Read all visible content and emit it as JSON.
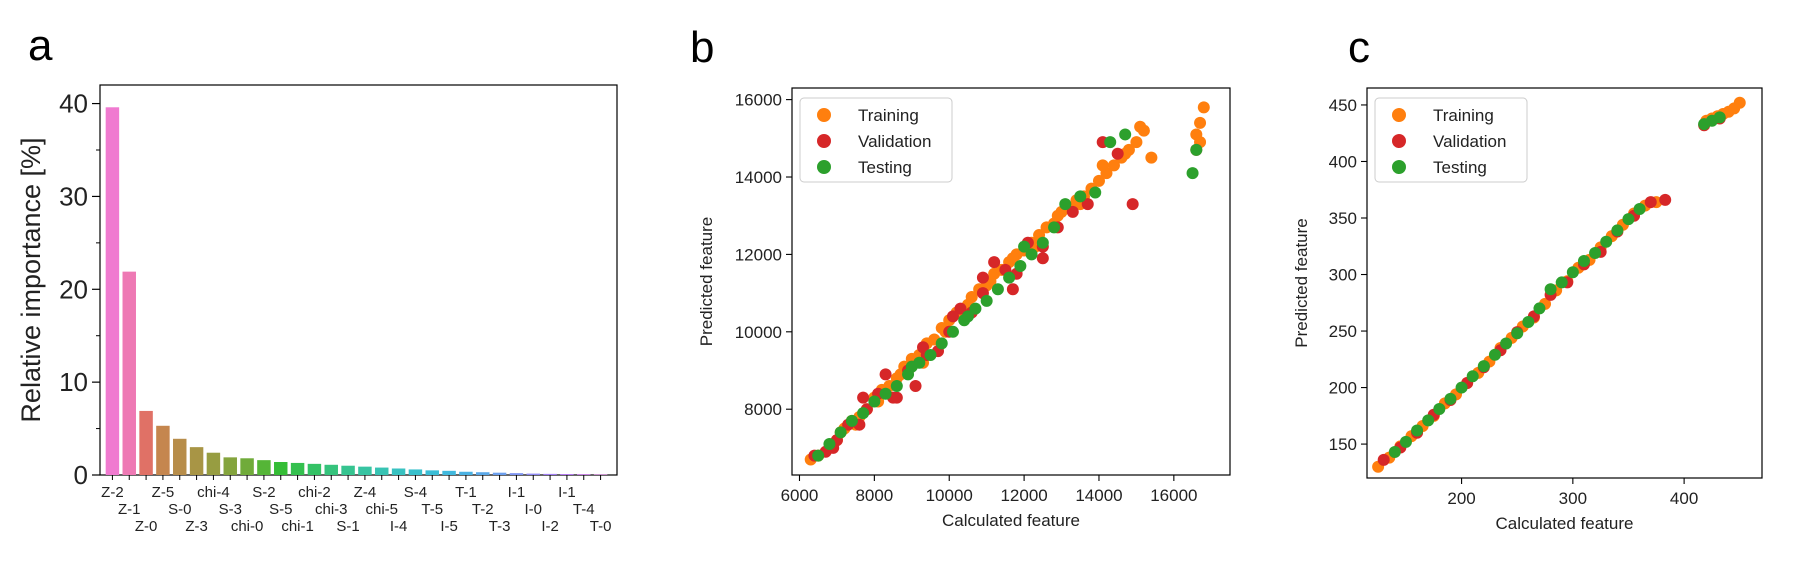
{
  "panels": {
    "a": {
      "letter": "a"
    },
    "b": {
      "letter": "b"
    },
    "c": {
      "letter": "c"
    }
  },
  "chart_data": [
    {
      "panel": "a",
      "type": "bar",
      "ylabel": "Relative importance [%]",
      "xlabel": "",
      "ylim": [
        0,
        42
      ],
      "yticks": [
        0,
        10,
        20,
        30,
        40
      ],
      "grid": false,
      "categories": [
        "Z-2",
        "Z-1",
        "Z-0",
        "Z-5",
        "S-0",
        "Z-3",
        "chi-4",
        "S-3",
        "chi-0",
        "S-2",
        "S-5",
        "chi-1",
        "chi-2",
        "chi-3",
        "S-1",
        "Z-4",
        "chi-5",
        "I-4",
        "S-4",
        "T-5",
        "I-5",
        "T-1",
        "T-2",
        "T-3",
        "I-1",
        "I-0",
        "I-2",
        "I-1",
        "T-4",
        "T-0"
      ],
      "values": [
        39.6,
        21.9,
        6.9,
        5.3,
        3.9,
        3.0,
        2.4,
        1.9,
        1.8,
        1.6,
        1.4,
        1.3,
        1.2,
        1.1,
        1.0,
        0.9,
        0.8,
        0.7,
        0.6,
        0.5,
        0.45,
        0.35,
        0.3,
        0.25,
        0.2,
        0.15,
        0.12,
        0.1,
        0.08,
        0.05
      ],
      "colors": [
        "#f07ad0",
        "#ee79b4",
        "#e07166",
        "#c5864e",
        "#b78d4a",
        "#a89545",
        "#979d41",
        "#84a43d",
        "#70ab3a",
        "#55b537",
        "#35bd36",
        "#34c04e",
        "#34c265",
        "#35c37c",
        "#36c490",
        "#37c4a2",
        "#37c3b3",
        "#38c2c1",
        "#38c0cc",
        "#3abdd6",
        "#40b8dd",
        "#4ab1e2",
        "#5aa8e8",
        "#6b9eed",
        "#7d93f0",
        "#8e88f2",
        "#a07df2",
        "#b173f0",
        "#c36aea",
        "#d666e1"
      ]
    },
    {
      "panel": "b",
      "type": "scatter",
      "xlabel": "Calculated feature",
      "ylabel": "Predicted feature",
      "xlim": [
        5800,
        17500
      ],
      "ylim": [
        6300,
        16300
      ],
      "xticks": [
        6000,
        8000,
        10000,
        12000,
        14000,
        16000
      ],
      "yticks": [
        8000,
        10000,
        12000,
        14000,
        16000
      ],
      "grid": false,
      "legend_position": "top-left",
      "series": [
        {
          "name": "Training",
          "color": "#ff7f0e",
          "x": [
            6300,
            6500,
            6800,
            7000,
            7200,
            7400,
            7600,
            7800,
            8000,
            8200,
            8400,
            8600,
            8800,
            9000,
            9200,
            9400,
            9600,
            9800,
            10000,
            10200,
            10400,
            10600,
            10800,
            11000,
            11200,
            11400,
            11600,
            11800,
            12000,
            12200,
            12400,
            12600,
            12800,
            13000,
            13200,
            13400,
            13600,
            13800,
            14000,
            14200,
            14400,
            14600,
            14800,
            15000,
            15200,
            15400,
            16600,
            16700,
            16800,
            16700,
            7100,
            7500,
            8100,
            8700,
            9300,
            9900,
            10500,
            11100,
            11700,
            12300,
            12900,
            13500,
            14100,
            14700,
            15100
          ],
          "y": [
            6700,
            6800,
            7000,
            7200,
            7500,
            7700,
            7800,
            8000,
            8300,
            8500,
            8600,
            8800,
            9100,
            9300,
            9400,
            9700,
            9800,
            10100,
            10300,
            10500,
            10600,
            10900,
            11100,
            11200,
            11500,
            11600,
            11800,
            12000,
            12100,
            12300,
            12500,
            12700,
            12800,
            13100,
            13200,
            13400,
            13500,
            13700,
            13900,
            14100,
            14300,
            14500,
            14700,
            14900,
            15200,
            14500,
            15100,
            15400,
            15800,
            14900,
            7400,
            7600,
            8200,
            8900,
            9200,
            10000,
            10700,
            11300,
            11900,
            12200,
            13000,
            13300,
            14300,
            14600,
            15300
          ]
        },
        {
          "name": "Validation",
          "color": "#d62728",
          "x": [
            6400,
            6700,
            7000,
            7300,
            7600,
            7800,
            8100,
            8300,
            8600,
            8900,
            9100,
            9400,
            9700,
            10000,
            10300,
            10600,
            10900,
            11200,
            11500,
            11800,
            12100,
            12500,
            12900,
            13300,
            13700,
            14100,
            14500,
            14900,
            16600,
            6900,
            7700,
            8500,
            9300,
            10100,
            10900,
            11700,
            12500
          ],
          "y": [
            6800,
            6900,
            7200,
            7600,
            7600,
            8000,
            8400,
            8900,
            8300,
            9000,
            8600,
            9400,
            9500,
            10000,
            10600,
            10500,
            11000,
            11800,
            11600,
            11500,
            12300,
            12200,
            12700,
            13100,
            13300,
            14900,
            14600,
            13300,
            14700,
            7000,
            8300,
            8300,
            9600,
            10400,
            11400,
            11100,
            11900
          ]
        },
        {
          "name": "Testing",
          "color": "#2ca02c",
          "x": [
            6500,
            6800,
            7100,
            7400,
            7700,
            8000,
            8300,
            8600,
            8900,
            9200,
            9500,
            9800,
            10100,
            10400,
            10700,
            11000,
            11300,
            11600,
            11900,
            12200,
            12500,
            12800,
            13100,
            13500,
            13900,
            14300,
            14700,
            16600,
            16500,
            9000,
            10500,
            12000
          ],
          "y": [
            6800,
            7100,
            7400,
            7700,
            7900,
            8200,
            8400,
            8600,
            8900,
            9200,
            9400,
            9700,
            10000,
            10300,
            10600,
            10800,
            11100,
            11400,
            11700,
            12000,
            12300,
            12700,
            13300,
            13500,
            13600,
            14900,
            15100,
            14700,
            14100,
            9100,
            10400,
            12200
          ]
        }
      ]
    },
    {
      "panel": "c",
      "type": "scatter",
      "xlabel": "Calculated feature",
      "ylabel": "Predicted feature",
      "xlim": [
        115,
        470
      ],
      "ylim": [
        120,
        465
      ],
      "xticks": [
        200,
        300,
        400
      ],
      "yticks": [
        150,
        200,
        250,
        300,
        350,
        400,
        450
      ],
      "grid": false,
      "legend_position": "top-left",
      "series": [
        {
          "name": "Training",
          "color": "#ff7f0e",
          "x": [
            125,
            135,
            145,
            155,
            165,
            175,
            185,
            195,
            205,
            215,
            225,
            235,
            245,
            255,
            265,
            275,
            285,
            295,
            305,
            315,
            325,
            335,
            345,
            355,
            365,
            375,
            420,
            425,
            430,
            435,
            440,
            445,
            450
          ],
          "y": [
            130,
            138,
            148,
            157,
            166,
            175,
            186,
            194,
            204,
            213,
            223,
            235,
            244,
            254,
            262,
            274,
            286,
            294,
            306,
            313,
            324,
            334,
            344,
            354,
            361,
            364,
            436,
            438,
            440,
            442,
            444,
            447,
            452
          ]
        },
        {
          "name": "Validation",
          "color": "#d62728",
          "x": [
            130,
            145,
            160,
            175,
            190,
            205,
            220,
            235,
            250,
            265,
            280,
            295,
            310,
            325,
            340,
            355,
            370,
            383,
            418,
            432
          ],
          "y": [
            136,
            147,
            160,
            176,
            189,
            204,
            218,
            233,
            249,
            263,
            282,
            293,
            309,
            320,
            338,
            352,
            364,
            366,
            432,
            438
          ]
        },
        {
          "name": "Testing",
          "color": "#2ca02c",
          "x": [
            140,
            150,
            160,
            170,
            180,
            190,
            200,
            210,
            220,
            230,
            240,
            250,
            260,
            270,
            280,
            290,
            300,
            310,
            320,
            330,
            340,
            350,
            360,
            418,
            425,
            432
          ],
          "y": [
            143,
            152,
            162,
            171,
            181,
            190,
            200,
            210,
            219,
            229,
            239,
            248,
            258,
            270,
            287,
            293,
            302,
            312,
            319,
            329,
            339,
            349,
            358,
            433,
            436,
            439
          ]
        }
      ]
    }
  ]
}
